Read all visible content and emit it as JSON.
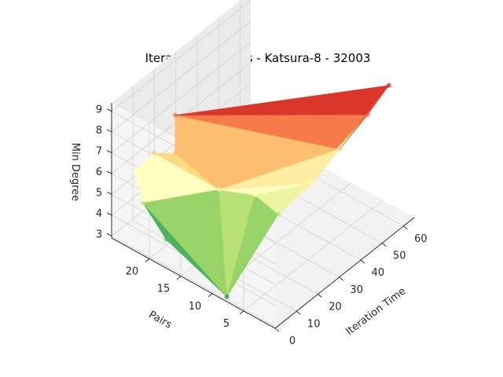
{
  "chart_data": {
    "type": "surface3d",
    "title": "Iteration Statistics - Katsura-8 - 32003",
    "xlabel": "Iteration Time",
    "ylabel": "Pairs",
    "zlabel": "Min Degree",
    "xlim": [
      0,
      65
    ],
    "ylim": [
      0,
      26
    ],
    "zlim": [
      2.9,
      9.4
    ],
    "xticks": [
      "0",
      "10",
      "20",
      "30",
      "40",
      "50",
      "60"
    ],
    "yticks": [
      "5",
      "10",
      "15",
      "20"
    ],
    "zticks": [
      "3",
      "4",
      "5",
      "6",
      "7",
      "8",
      "9"
    ],
    "grid": true,
    "colormap": "RdYlGn_r",
    "points": [
      {
        "time": 1,
        "pairs": 8,
        "degree": 3
      },
      {
        "time": 2,
        "pairs": 18,
        "degree": 4
      },
      {
        "time": 3,
        "pairs": 22,
        "degree": 5
      },
      {
        "time": 5,
        "pairs": 24,
        "degree": 6
      },
      {
        "time": 8,
        "pairs": 22,
        "degree": 7
      },
      {
        "time": 12,
        "pairs": 20,
        "degree": 7
      },
      {
        "time": 18,
        "pairs": 22,
        "degree": 8
      },
      {
        "time": 15,
        "pairs": 14,
        "degree": 6
      },
      {
        "time": 20,
        "pairs": 10,
        "degree": 6
      },
      {
        "time": 25,
        "pairs": 8,
        "degree": 5
      },
      {
        "time": 35,
        "pairs": 6,
        "degree": 6
      },
      {
        "time": 45,
        "pairs": 5,
        "degree": 7
      },
      {
        "time": 55,
        "pairs": 4,
        "degree": 8
      },
      {
        "time": 62,
        "pairs": 3,
        "degree": 9
      }
    ],
    "triangles": [
      [
        0,
        1,
        2
      ],
      [
        0,
        2,
        7
      ],
      [
        2,
        3,
        4
      ],
      [
        2,
        4,
        7
      ],
      [
        4,
        5,
        7
      ],
      [
        5,
        6,
        7
      ],
      [
        0,
        7,
        8
      ],
      [
        0,
        8,
        9
      ],
      [
        7,
        8,
        10
      ],
      [
        8,
        9,
        10
      ],
      [
        6,
        7,
        11
      ],
      [
        7,
        10,
        11
      ],
      [
        6,
        11,
        12
      ],
      [
        11,
        12,
        13
      ],
      [
        6,
        12,
        13
      ],
      [
        9,
        10,
        12
      ]
    ]
  }
}
